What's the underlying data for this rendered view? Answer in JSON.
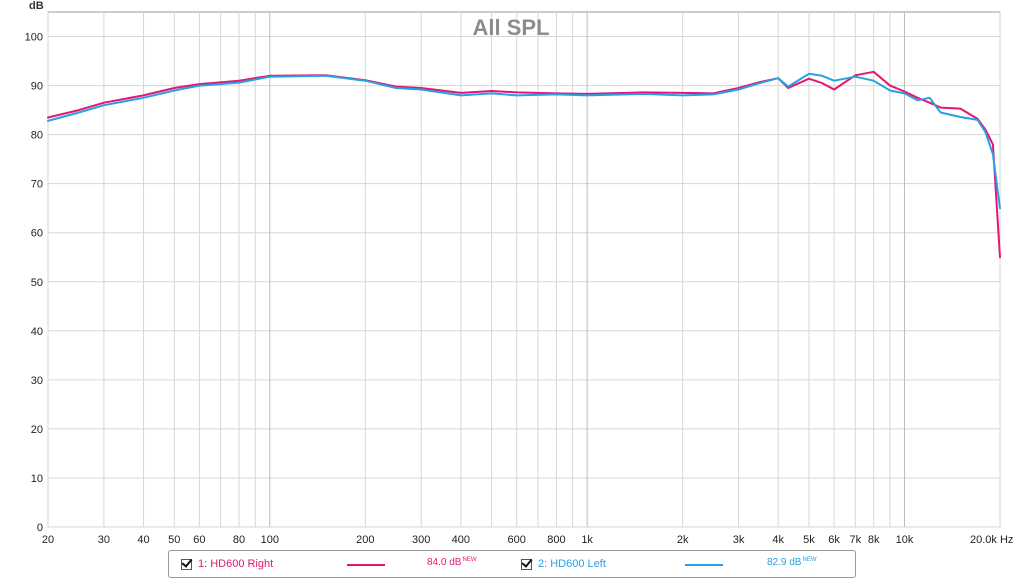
{
  "chart_data": {
    "type": "line",
    "title": "All SPL",
    "ylabel": "dB",
    "xlabel": "",
    "xscale": "log",
    "xlim": [
      20,
      20000
    ],
    "ylim": [
      0,
      105
    ],
    "x_ticks": [
      20,
      30,
      40,
      50,
      60,
      80,
      100,
      200,
      300,
      400,
      600,
      800,
      1000,
      2000,
      3000,
      4000,
      5000,
      6000,
      7000,
      8000,
      10000,
      20000
    ],
    "x_tick_labels": [
      "20",
      "30",
      "40",
      "50",
      "60",
      "80",
      "100",
      "200",
      "300",
      "400",
      "600",
      "800",
      "1k",
      "2k",
      "3k",
      "4k",
      "5k",
      "6k",
      "7k",
      "8k",
      "10k",
      "20.0k Hz"
    ],
    "y_ticks": [
      0,
      10,
      20,
      30,
      40,
      50,
      60,
      70,
      80,
      90,
      100
    ],
    "grid": true,
    "legend_position": "bottom",
    "series": [
      {
        "name": "1: HD600 Right",
        "color": "#e6166e",
        "level": "84.0 dB",
        "level_badge": "NEW",
        "x": [
          20,
          25,
          30,
          40,
          50,
          60,
          80,
          100,
          150,
          200,
          250,
          300,
          400,
          500,
          600,
          800,
          1000,
          1500,
          2000,
          2500,
          3000,
          3500,
          4000,
          4300,
          5000,
          5500,
          6000,
          7000,
          8000,
          9000,
          10000,
          11000,
          12000,
          13000,
          15000,
          17000,
          18000,
          19000,
          20000
        ],
        "y": [
          83.5,
          85.0,
          86.5,
          88.0,
          89.5,
          90.3,
          91.0,
          92.0,
          92.1,
          91.1,
          89.8,
          89.5,
          88.5,
          88.9,
          88.6,
          88.4,
          88.3,
          88.6,
          88.5,
          88.4,
          89.5,
          90.7,
          91.5,
          89.5,
          91.4,
          90.5,
          89.2,
          92.1,
          92.8,
          90.0,
          88.8,
          87.5,
          86.5,
          85.5,
          85.3,
          83.2,
          81.0,
          78.0,
          55.0
        ]
      },
      {
        "name": "2: HD600 Left",
        "color": "#27a1e4",
        "level": "82.9 dB",
        "level_badge": "NEW",
        "x": [
          20,
          25,
          30,
          40,
          50,
          60,
          80,
          100,
          150,
          200,
          250,
          300,
          400,
          500,
          600,
          800,
          1000,
          1500,
          2000,
          2500,
          3000,
          3500,
          4000,
          4300,
          5000,
          5500,
          6000,
          7000,
          8000,
          9000,
          10000,
          11000,
          12000,
          13000,
          15000,
          17000,
          18000,
          19000,
          20000
        ],
        "y": [
          82.8,
          84.5,
          86.0,
          87.5,
          89.0,
          90.0,
          90.6,
          91.8,
          92.0,
          91.0,
          89.5,
          89.2,
          88.0,
          88.4,
          88.0,
          88.2,
          88.0,
          88.3,
          88.0,
          88.2,
          89.2,
          90.5,
          91.5,
          89.8,
          92.4,
          92.0,
          91.0,
          91.8,
          91.0,
          89.0,
          88.4,
          87.0,
          87.5,
          84.5,
          83.6,
          83.0,
          80.5,
          76.0,
          65.0
        ]
      }
    ]
  }
}
